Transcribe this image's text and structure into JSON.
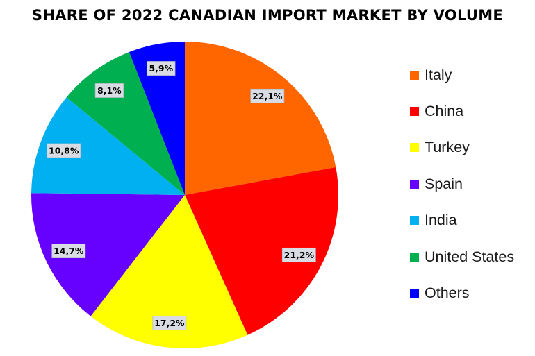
{
  "chart_data": {
    "type": "pie",
    "title": "SHARE OF 2022 CANADIAN IMPORT MARKET BY VOLUME",
    "categories": [
      "Italy",
      "China",
      "Turkey",
      "Spain",
      "India",
      "United States",
      "Others"
    ],
    "values": [
      22.1,
      21.2,
      17.2,
      14.7,
      10.8,
      8.1,
      5.9
    ],
    "data_labels": [
      "22,1%",
      "21,2%",
      "17,2%",
      "14,7%",
      "10,8%",
      "8,1%",
      "5,9%"
    ],
    "colors": [
      "#ff6600",
      "#ff0000",
      "#ffff00",
      "#6600ff",
      "#00b0f0",
      "#00b050",
      "#0000ff"
    ],
    "start_angle": "12 o'clock",
    "direction": "clockwise",
    "legend_position": "right"
  }
}
